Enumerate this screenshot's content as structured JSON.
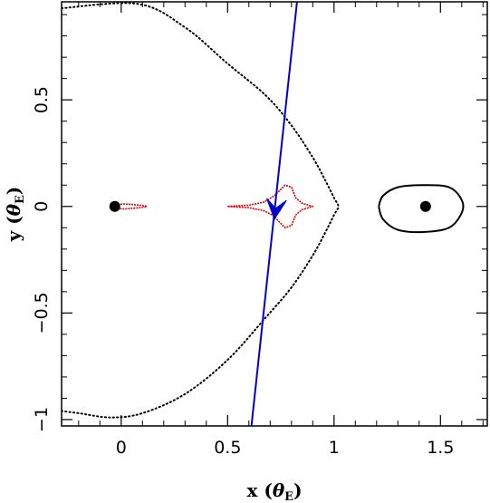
{
  "chart_data": {
    "type": "scatter",
    "title": "",
    "xlabel": "x (θE)",
    "ylabel": "y (θE)",
    "xlabel_parts": {
      "main": "x (",
      "symbol": "θ",
      "subscript": "E",
      "close": ")"
    },
    "ylabel_parts": {
      "main": "y (",
      "symbol": "θ",
      "subscript": "E",
      "close": ")"
    },
    "xlim": [
      -0.28,
      1.72
    ],
    "ylim": [
      -1.03,
      0.96
    ],
    "x_ticks": [
      0,
      0.5,
      1,
      1.5
    ],
    "y_ticks": [
      -1,
      -0.5,
      0,
      0.5
    ],
    "x_tick_labels": [
      "0",
      "0.5",
      "1",
      "1.5"
    ],
    "y_tick_labels": [
      "−1",
      "−0.5",
      "0",
      "0.5"
    ],
    "grid": false,
    "legend": "none",
    "colors": {
      "critical_curve": "#000000",
      "caustic": "#dd0000",
      "trajectory": "#0000cc",
      "lens": "#000000",
      "frame": "#000000"
    },
    "lens_masses": [
      {
        "x": -0.03,
        "y": 0.0
      },
      {
        "x": 1.43,
        "y": 0.0
      }
    ],
    "critical_curve_outer": {
      "style": "dotted",
      "points": [
        [
          -0.28,
          0.93
        ],
        [
          0.08,
          0.95
        ],
        [
          0.3,
          0.84
        ],
        [
          0.5,
          0.67
        ],
        [
          0.68,
          0.52
        ],
        [
          0.8,
          0.38
        ],
        [
          0.9,
          0.23
        ],
        [
          0.96,
          0.12
        ],
        [
          1.0,
          0.04
        ],
        [
          1.02,
          0.0
        ],
        [
          1.0,
          -0.04
        ],
        [
          0.96,
          -0.12
        ],
        [
          0.9,
          -0.23
        ],
        [
          0.8,
          -0.38
        ],
        [
          0.68,
          -0.52
        ],
        [
          0.5,
          -0.72
        ],
        [
          0.3,
          -0.88
        ],
        [
          0.1,
          -0.97
        ],
        [
          -0.05,
          -0.99
        ],
        [
          -0.2,
          -0.97
        ],
        [
          -0.28,
          -0.96
        ]
      ]
    },
    "critical_curve_inner": {
      "style": "solid",
      "points": [
        [
          1.21,
          0.0
        ],
        [
          1.23,
          0.05
        ],
        [
          1.3,
          0.09
        ],
        [
          1.42,
          0.1
        ],
        [
          1.54,
          0.09
        ],
        [
          1.6,
          0.03
        ],
        [
          1.6,
          -0.03
        ],
        [
          1.54,
          -0.1
        ],
        [
          1.42,
          -0.12
        ],
        [
          1.3,
          -0.11
        ],
        [
          1.23,
          -0.06
        ],
        [
          1.21,
          0.0
        ]
      ]
    },
    "caustic_small": {
      "style": "dotted",
      "points": [
        [
          -0.04,
          0.0
        ],
        [
          -0.01,
          0.01
        ],
        [
          0.04,
          0.01
        ],
        [
          0.12,
          0.0
        ],
        [
          0.04,
          -0.01
        ],
        [
          -0.01,
          -0.01
        ],
        [
          -0.04,
          0.0
        ]
      ]
    },
    "caustic_main": {
      "style": "dotted",
      "points": [
        [
          0.5,
          0.0
        ],
        [
          0.6,
          0.006
        ],
        [
          0.67,
          0.02
        ],
        [
          0.72,
          0.05
        ],
        [
          0.77,
          0.1
        ],
        [
          0.8,
          0.09
        ],
        [
          0.82,
          0.04
        ],
        [
          0.85,
          0.015
        ],
        [
          0.9,
          0.0
        ],
        [
          0.85,
          -0.015
        ],
        [
          0.82,
          -0.04
        ],
        [
          0.8,
          -0.09
        ],
        [
          0.77,
          -0.1
        ],
        [
          0.74,
          -0.07
        ],
        [
          0.71,
          -0.04
        ],
        [
          0.67,
          -0.02
        ],
        [
          0.6,
          -0.006
        ],
        [
          0.5,
          0.0
        ]
      ]
    },
    "source_trajectory": {
      "points": [
        [
          0.612,
          -1.03
        ],
        [
          0.826,
          0.96
        ]
      ],
      "arrow_tip": [
        0.72,
        -0.06
      ]
    }
  }
}
